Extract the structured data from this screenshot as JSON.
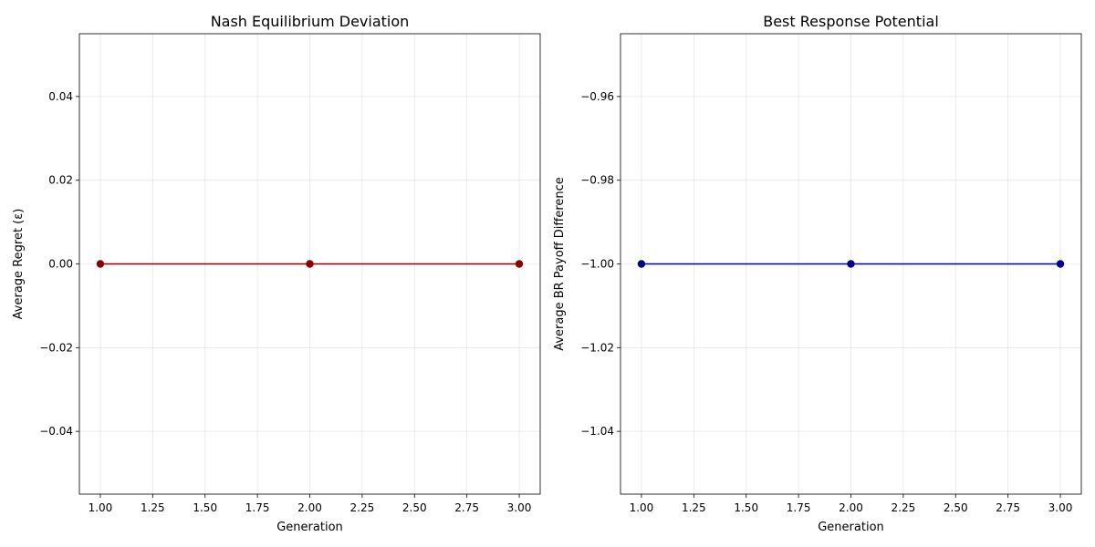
{
  "chart_data": [
    {
      "type": "line",
      "title": "Nash Equilibrium Deviation",
      "xlabel": "Generation",
      "ylabel": "Average Regret (ε)",
      "x": [
        1.0,
        2.0,
        3.0
      ],
      "series": [
        {
          "values": [
            0.0,
            0.0,
            0.0
          ],
          "color": "#8b0000",
          "marker": "circle"
        }
      ],
      "xlim": [
        0.9,
        3.1
      ],
      "ylim": [
        -0.055,
        0.055
      ],
      "xticks": [
        1.0,
        1.25,
        1.5,
        1.75,
        2.0,
        2.25,
        2.5,
        2.75,
        3.0
      ],
      "xtick_labels": [
        "1.00",
        "1.25",
        "1.50",
        "1.75",
        "2.00",
        "2.25",
        "2.50",
        "2.75",
        "3.00"
      ],
      "yticks": [
        0.04,
        0.02,
        0.0,
        -0.02,
        -0.04
      ],
      "ytick_labels": [
        "0.04",
        "0.02",
        "0.00",
        "−0.02",
        "−0.04"
      ],
      "grid": true,
      "legend": false
    },
    {
      "type": "line",
      "title": "Best Response Potential",
      "xlabel": "Generation",
      "ylabel": "Average BR Payoff Difference",
      "x": [
        1.0,
        2.0,
        3.0
      ],
      "series": [
        {
          "values": [
            -1.0,
            -1.0,
            -1.0
          ],
          "color": "#00008b",
          "marker": "circle"
        }
      ],
      "xlim": [
        0.9,
        3.1
      ],
      "ylim": [
        -1.055,
        -0.945
      ],
      "xticks": [
        1.0,
        1.25,
        1.5,
        1.75,
        2.0,
        2.25,
        2.5,
        2.75,
        3.0
      ],
      "xtick_labels": [
        "1.00",
        "1.25",
        "1.50",
        "1.75",
        "2.00",
        "2.25",
        "2.50",
        "2.75",
        "3.00"
      ],
      "yticks": [
        -0.96,
        -0.98,
        -1.0,
        -1.02,
        -1.04
      ],
      "ytick_labels": [
        "−0.96",
        "−0.98",
        "−1.00",
        "−1.02",
        "−1.04"
      ],
      "grid": true,
      "legend": false
    }
  ]
}
